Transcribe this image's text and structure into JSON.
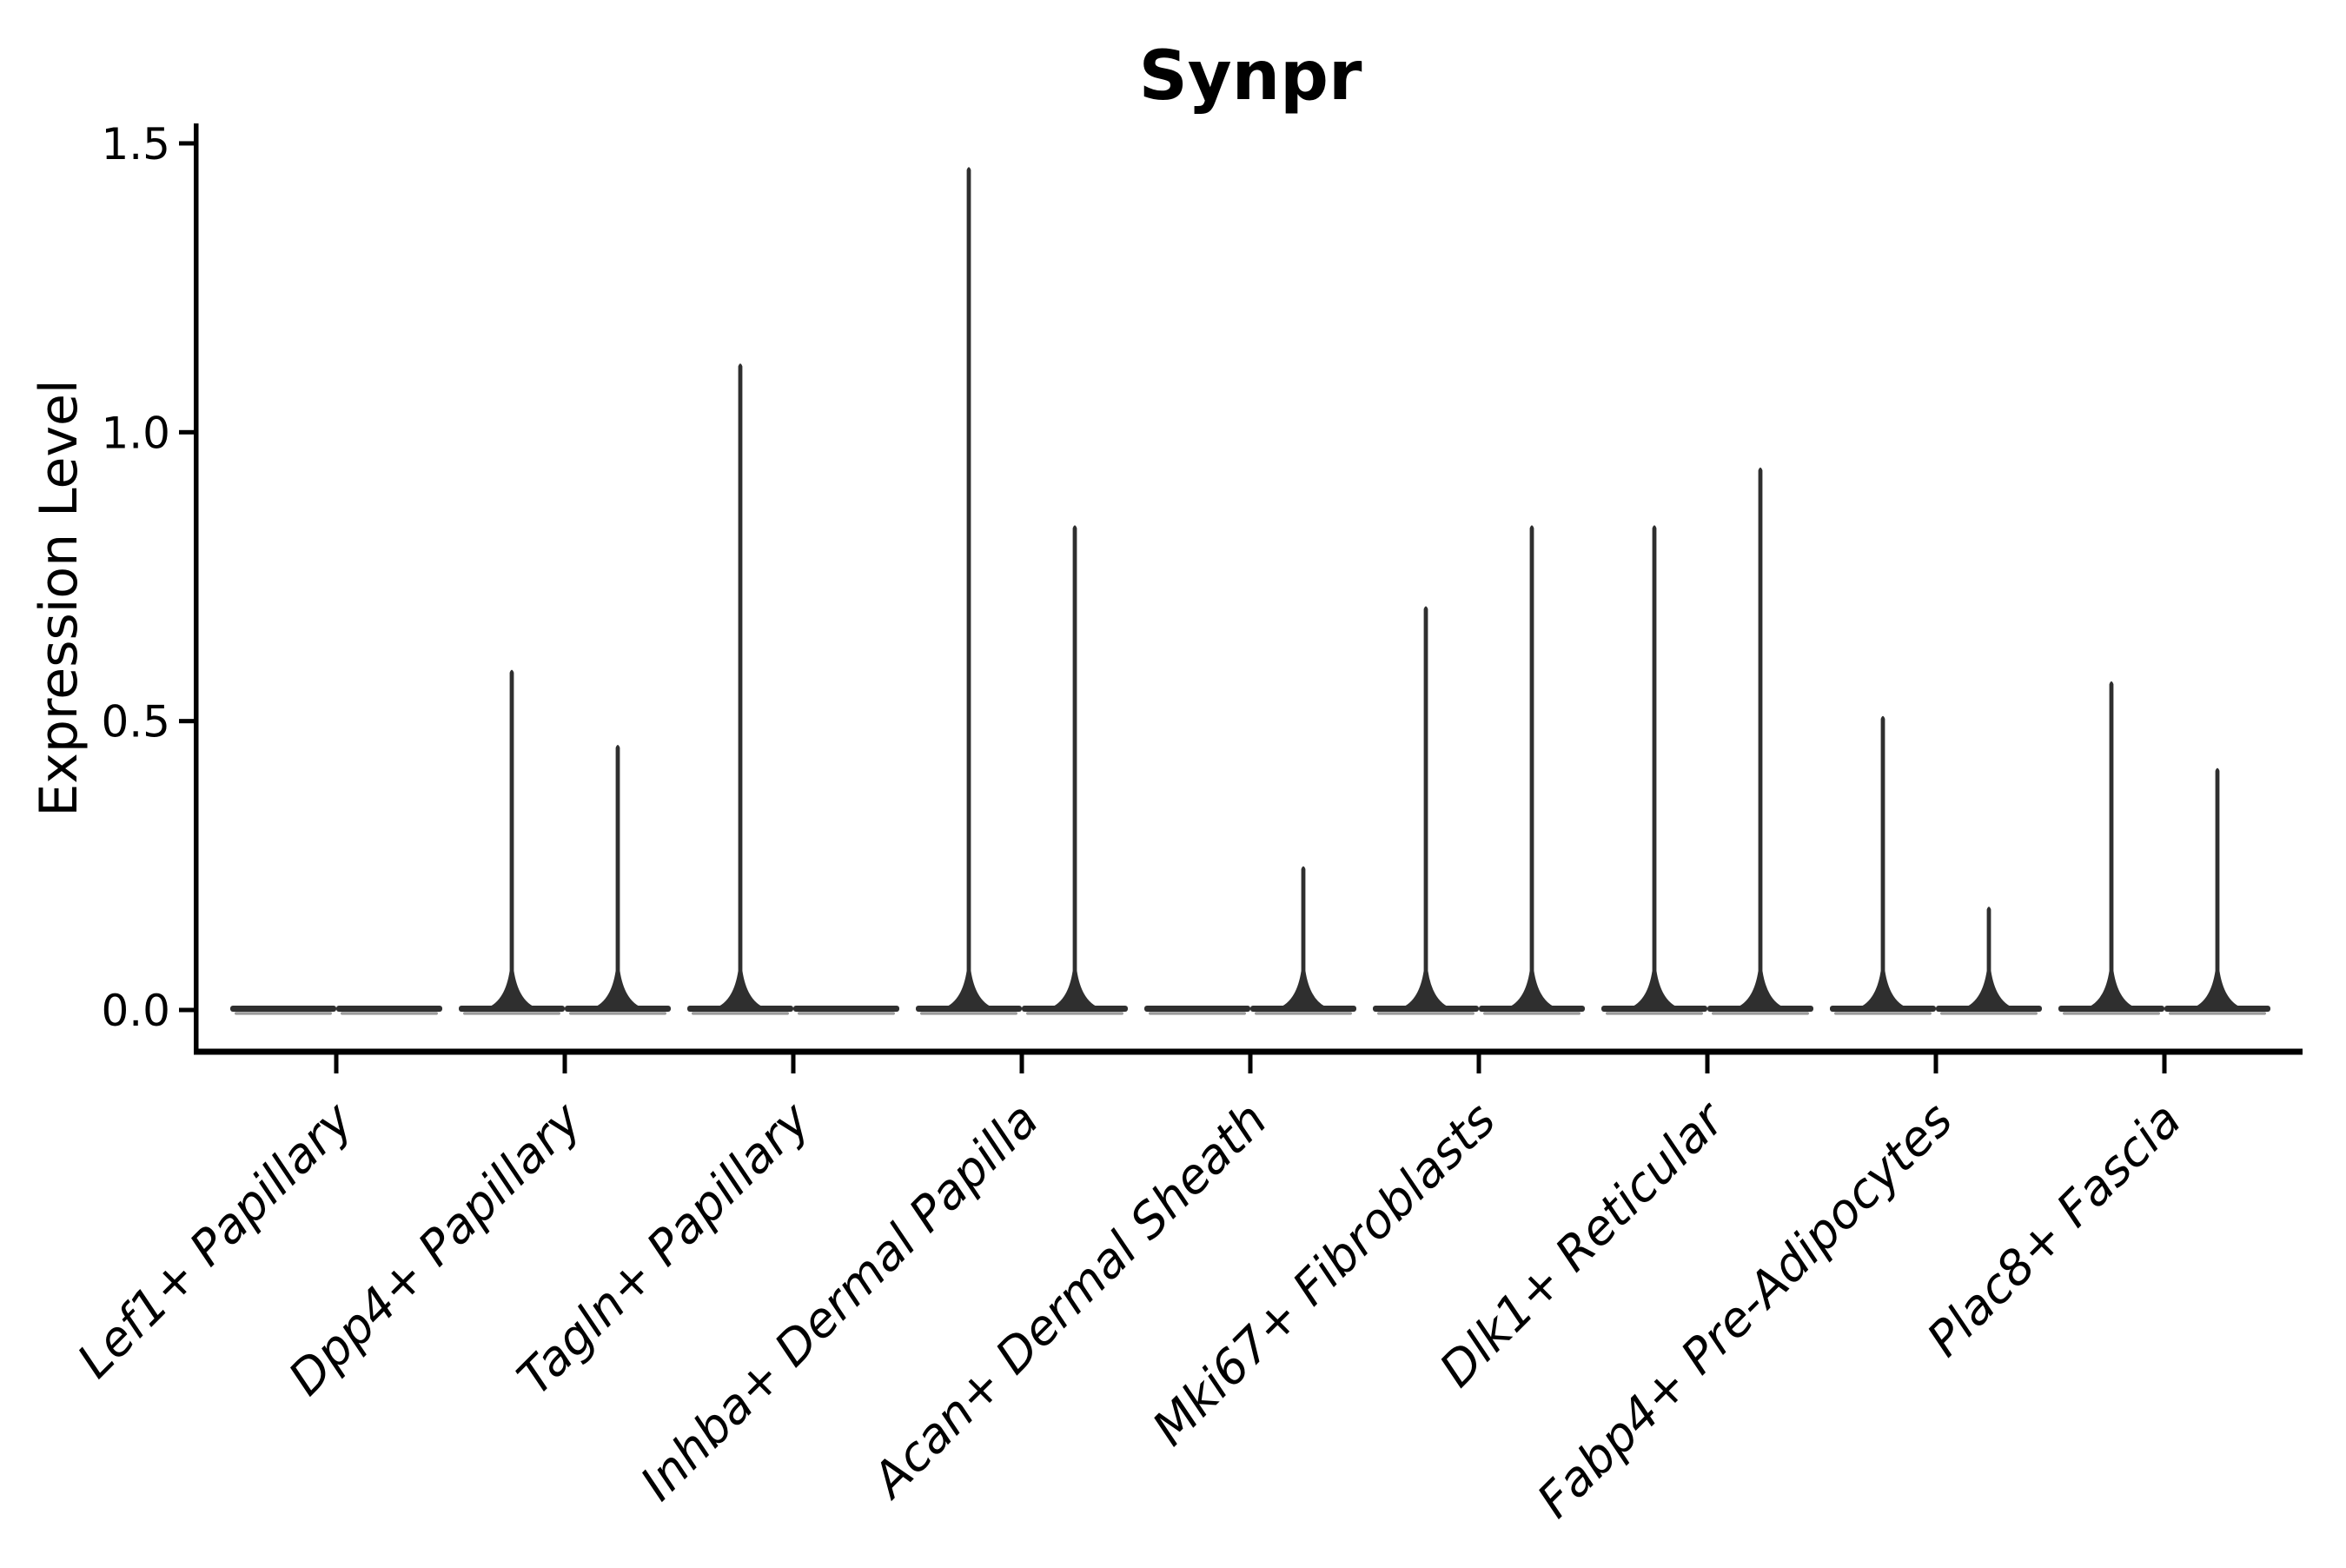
{
  "chart_data": {
    "type": "violin",
    "title": "Synpr",
    "xlabel": "",
    "ylabel": "Expression Level",
    "ylim": [
      0,
      1.5
    ],
    "yticks": [
      0,
      0.5,
      1.0,
      1.5
    ],
    "ytick_labels": [
      "0.0",
      "0.5",
      "1.0",
      "1.5"
    ],
    "categories": [
      "Lef1+ Papillary",
      "Dpp4+ Papillary",
      "Tagln+ Papillary",
      "Inhba+ Dermal Papilla",
      "Acan+ Dermal Sheath",
      "Mki67+ Fibroblasts",
      "Dlk1+ Reticular",
      "Fabp4+ Pre-Adipocytes",
      "Plac8+ Fascia"
    ],
    "violins_per_category": 2,
    "series": [
      {
        "name": "left-violin",
        "peak_values": [
          0,
          0.59,
          1.12,
          1.46,
          0,
          0.7,
          0.84,
          0.51,
          0.57
        ]
      },
      {
        "name": "right-violin",
        "peak_values": [
          0,
          0.46,
          0,
          0.84,
          0.25,
          0.84,
          0.94,
          0.18,
          0.42
        ]
      }
    ],
    "violin_shape": "needle: wide flat base at y=0 with thin vertical spike rising to peak value (0 = completely flat)",
    "legend_position": "none",
    "grid": false,
    "x_label_rotation_deg": 45,
    "colors": {
      "violin_fill": "#2f2f2f",
      "violin_base_underline": "#9a9a9a",
      "axis": "#000000",
      "text": "#000000",
      "background": "#ffffff"
    }
  }
}
